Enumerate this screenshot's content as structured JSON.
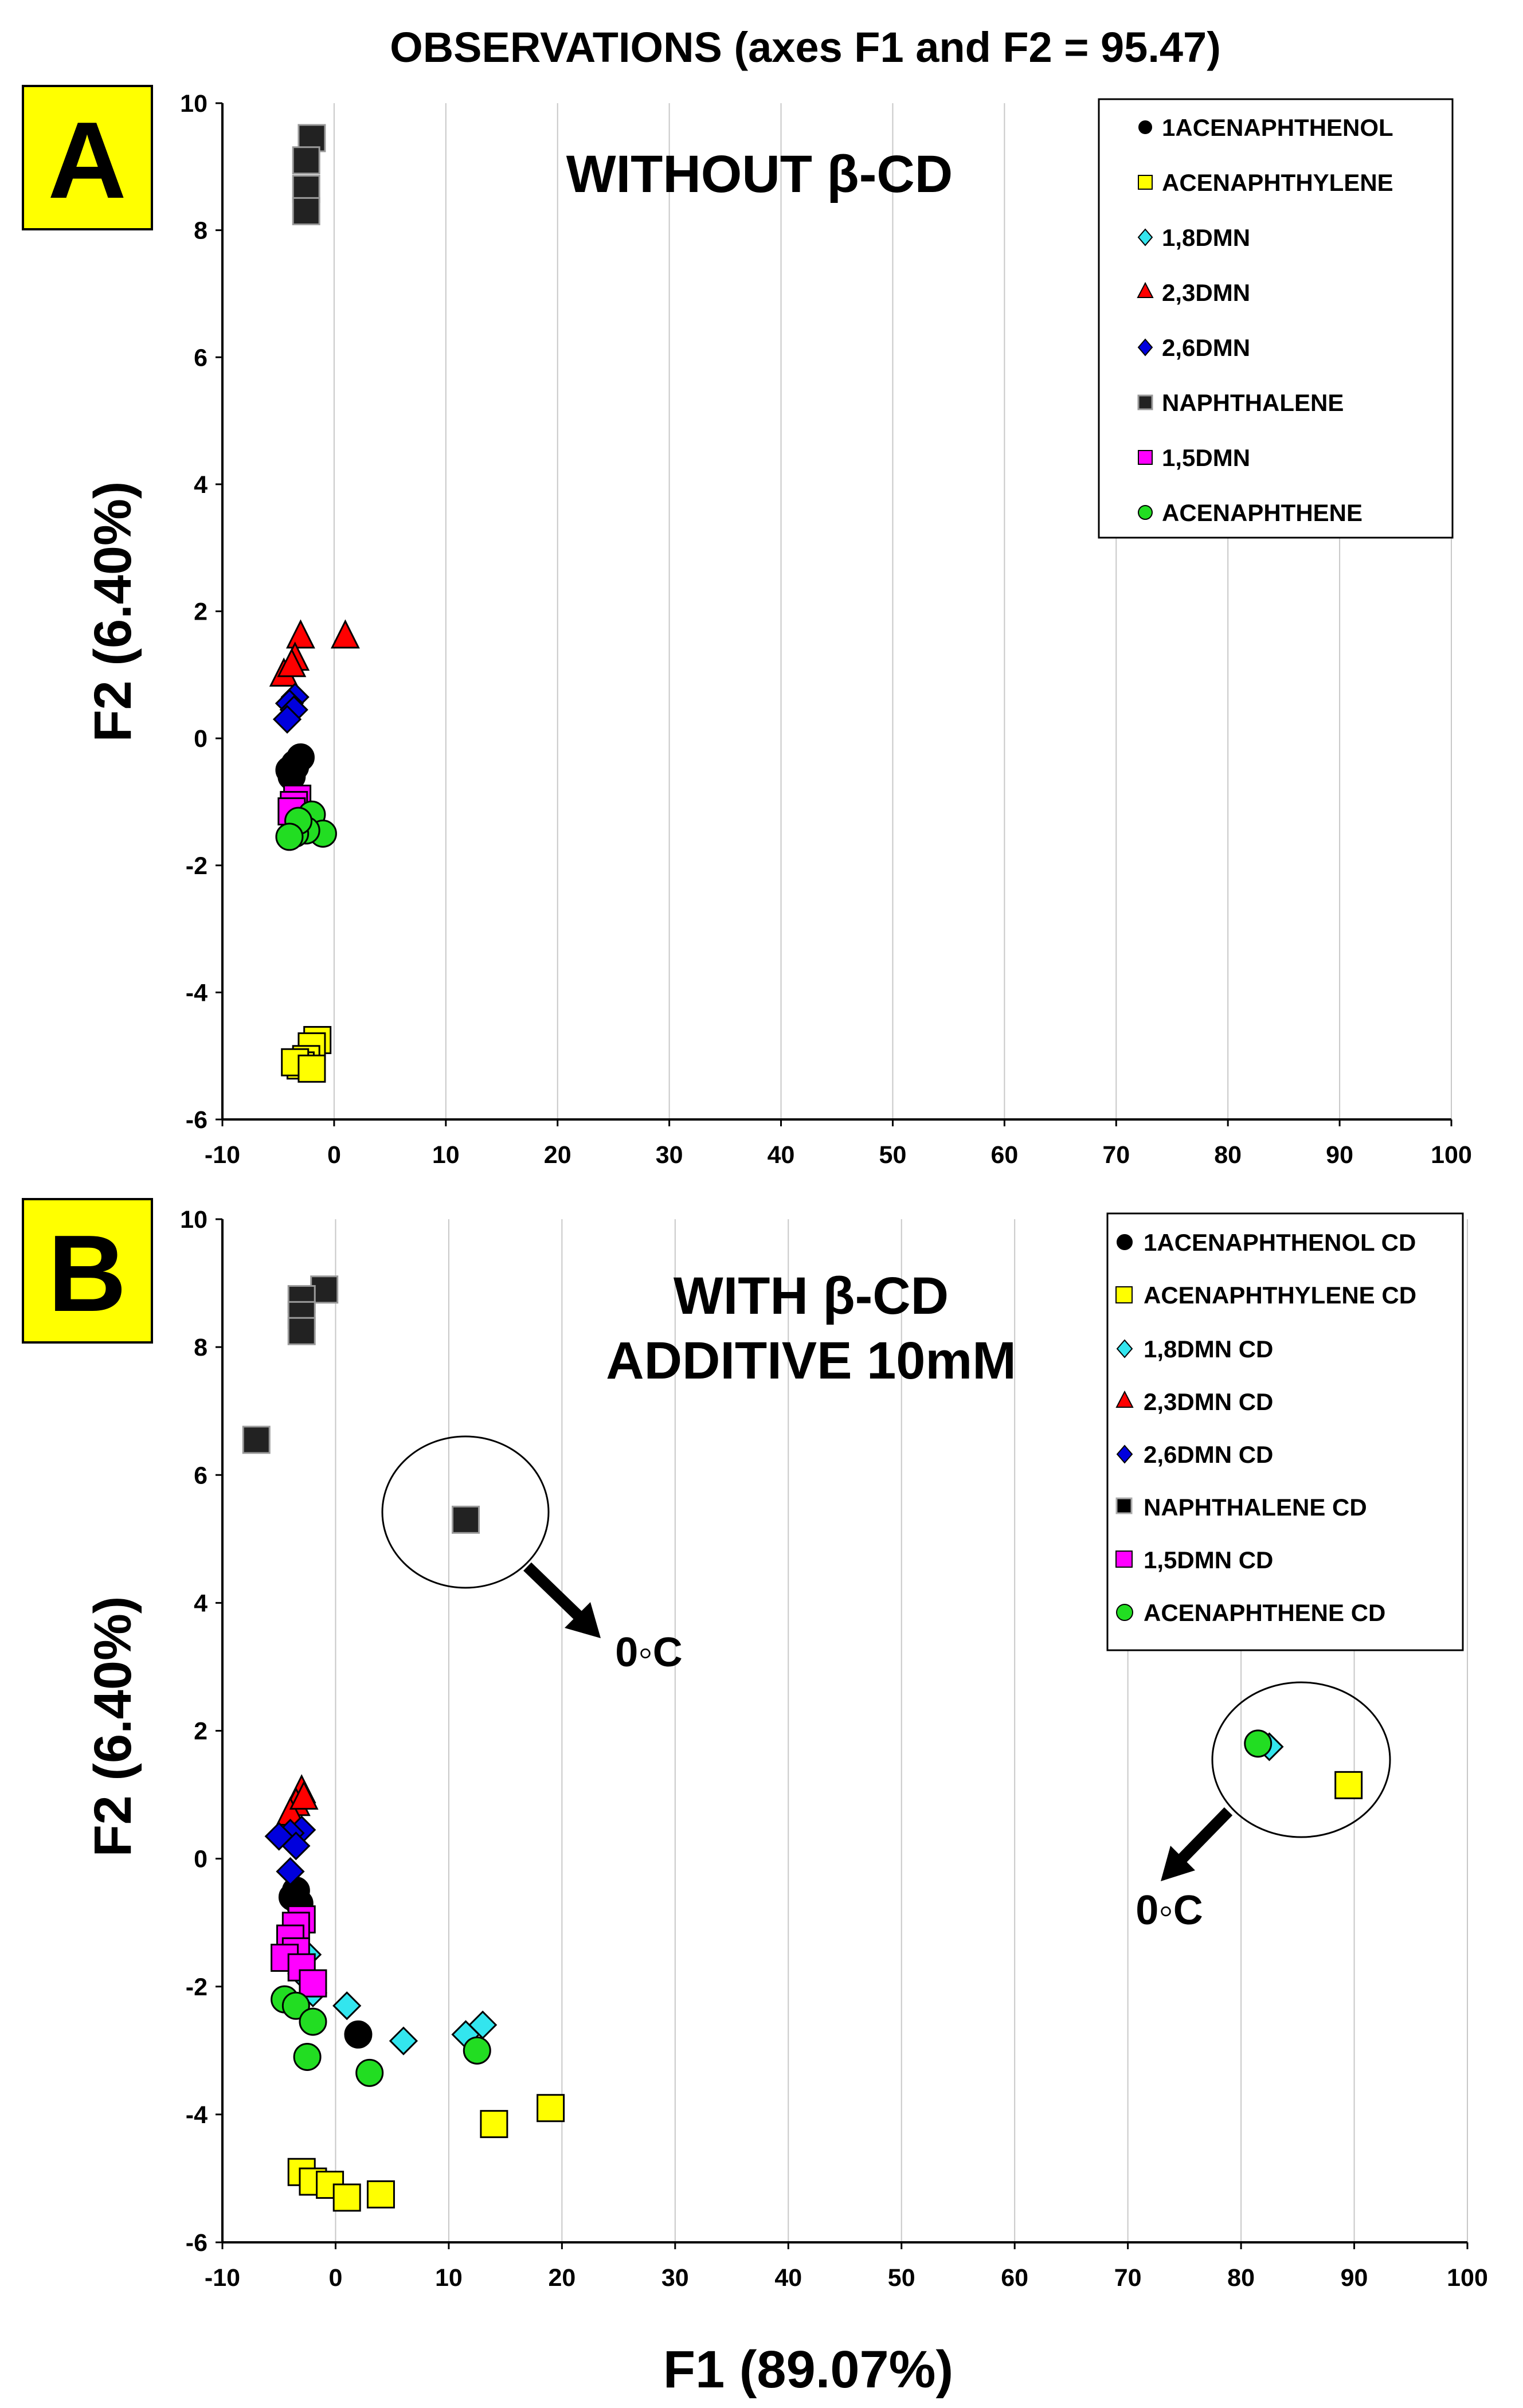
{
  "title": "OBSERVATIONS (axes F1 and F2 = 95.47)",
  "colors": {
    "1ACENAPHTHENOL": "#000000",
    "ACENAPHTHYLENE": "#ffff00",
    "1,8DMN": "#33e5ee",
    "2,3DMN": "#ff0000",
    "2,6DMN": "#0000dd",
    "NAPHTHALENE": "#222222",
    "1,5DMN": "#ff00ff",
    "ACENAPHTHENE": "#22dd22",
    "badge": "#ffff00"
  },
  "chart_data": [
    {
      "type": "scatter",
      "panel": "A",
      "condition": [
        "WITHOUT β-CD"
      ],
      "xlabel": "",
      "ylabel": "F2 (6.40%)",
      "xlim": [
        -10,
        100
      ],
      "ylim": [
        -6,
        10
      ],
      "xticks": [
        "-10",
        "0",
        "10",
        "20",
        "30",
        "40",
        "50",
        "60",
        "70",
        "80",
        "90",
        "100"
      ],
      "yticks": [
        "-6",
        "-4",
        "-2",
        "0",
        "2",
        "4",
        "6",
        "8",
        "10"
      ],
      "legend_position": "top-right",
      "series": [
        {
          "name": "1ACENAPHTHENOL",
          "key": "1ACENAPHTHENOL",
          "marker": "circle",
          "points": [
            [
              -3.0,
              -0.3
            ],
            [
              -3.5,
              -0.4
            ],
            [
              -4.0,
              -0.5
            ],
            [
              -3.8,
              -0.6
            ],
            [
              -3.5,
              -0.45
            ]
          ]
        },
        {
          "name": "ACENAPHTHYLENE",
          "key": "ACENAPHTHYLENE",
          "marker": "square",
          "points": [
            [
              -1.5,
              -4.75
            ],
            [
              -2.0,
              -4.85
            ],
            [
              -2.5,
              -5.05
            ],
            [
              -3.0,
              -5.15
            ],
            [
              -3.5,
              -5.1
            ],
            [
              -2.0,
              -5.2
            ]
          ]
        },
        {
          "name": "1,8DMN",
          "key": "1,8DMN",
          "marker": "diamond",
          "points": []
        },
        {
          "name": "2,3DMN",
          "key": "2,3DMN",
          "marker": "triangle",
          "points": [
            [
              -3.0,
              1.6
            ],
            [
              -3.5,
              1.25
            ],
            [
              -4.5,
              1.0
            ],
            [
              -3.8,
              1.15
            ],
            [
              1.0,
              1.6
            ]
          ]
        },
        {
          "name": "2,6DMN",
          "key": "2,6DMN",
          "marker": "diamond",
          "points": [
            [
              -3.5,
              0.65
            ],
            [
              -4.0,
              0.55
            ],
            [
              -3.6,
              0.45
            ],
            [
              -4.2,
              0.3
            ]
          ]
        },
        {
          "name": "NAPHTHALENE",
          "key": "NAPHTHALENE",
          "marker": "square",
          "points": [
            [
              -2.0,
              9.45
            ],
            [
              -2.5,
              9.1
            ],
            [
              -2.5,
              8.65
            ],
            [
              -2.5,
              8.3
            ]
          ]
        },
        {
          "name": "1,5DMN",
          "key": "1,5DMN",
          "marker": "square",
          "points": [
            [
              -3.3,
              -0.95
            ],
            [
              -3.6,
              -1.05
            ],
            [
              -3.8,
              -1.15
            ]
          ]
        },
        {
          "name": "ACENAPHTHENE",
          "key": "ACENAPHTHENE",
          "marker": "circle",
          "points": [
            [
              -2.0,
              -1.2
            ],
            [
              -1.0,
              -1.5
            ],
            [
              -2.5,
              -1.45
            ],
            [
              -3.5,
              -1.5
            ],
            [
              -3.2,
              -1.3
            ],
            [
              -4.0,
              -1.55
            ]
          ]
        }
      ]
    },
    {
      "type": "scatter",
      "panel": "B",
      "condition": [
        "WITH β-CD",
        "ADDITIVE 10mM"
      ],
      "xlabel": "F1 (89.07%)",
      "ylabel": "F2 (6.40%)",
      "xlim": [
        -10,
        100
      ],
      "ylim": [
        -6,
        10
      ],
      "xticks": [
        "-10",
        "0",
        "10",
        "20",
        "30",
        "40",
        "50",
        "60",
        "70",
        "80",
        "90",
        "100"
      ],
      "yticks": [
        "-6",
        "-4",
        "-2",
        "0",
        "2",
        "4",
        "6",
        "8",
        "10"
      ],
      "legend_position": "top-right",
      "annotations": [
        "0◦C",
        "0◦C"
      ],
      "series": [
        {
          "name": "1ACENAPHTHENOL CD",
          "key": "1ACENAPHTHENOL",
          "marker": "circle",
          "points": [
            [
              -3.5,
              -0.5
            ],
            [
              -3.8,
              -0.6
            ],
            [
              -3.2,
              -0.7
            ],
            [
              2.0,
              -2.75
            ]
          ]
        },
        {
          "name": "ACENAPHTHYLENE CD",
          "key": "ACENAPHTHYLENE",
          "marker": "square",
          "points": [
            [
              -3.0,
              -4.9
            ],
            [
              -2.0,
              -5.05
            ],
            [
              -0.5,
              -5.1
            ],
            [
              1.0,
              -5.3
            ],
            [
              4.0,
              -5.25
            ],
            [
              14.0,
              -4.15
            ],
            [
              19.0,
              -3.9
            ],
            [
              89.5,
              1.15
            ]
          ]
        },
        {
          "name": "1,8DMN CD",
          "key": "1,8DMN",
          "marker": "diamond",
          "points": [
            [
              1.0,
              -2.3
            ],
            [
              6.0,
              -2.85
            ],
            [
              11.5,
              -2.75
            ],
            [
              13.0,
              -2.6
            ],
            [
              -2.0,
              -2.1
            ],
            [
              -3.0,
              -1.8
            ],
            [
              -2.5,
              -1.5
            ],
            [
              82.5,
              1.75
            ]
          ]
        },
        {
          "name": "2,3DMN CD",
          "key": "2,3DMN",
          "marker": "triangle",
          "points": [
            [
              -3.0,
              1.05
            ],
            [
              -3.5,
              0.85
            ],
            [
              -4.0,
              0.7
            ],
            [
              -2.8,
              0.95
            ]
          ]
        },
        {
          "name": "2,6DMN CD",
          "key": "2,6DMN",
          "marker": "diamond",
          "points": [
            [
              -3.0,
              0.45
            ],
            [
              -4.0,
              0.4
            ],
            [
              -5.0,
              0.35
            ],
            [
              -3.5,
              0.2
            ],
            [
              -4.0,
              -0.2
            ]
          ]
        },
        {
          "name": "NAPHTHALENE CD",
          "key": "NAPHTHALENE",
          "marker": "square",
          "points": [
            [
              -1.0,
              8.9
            ],
            [
              -3.0,
              8.75
            ],
            [
              -3.0,
              8.5
            ],
            [
              -3.0,
              8.25
            ],
            [
              -7.0,
              6.55
            ],
            [
              11.5,
              5.3
            ]
          ]
        },
        {
          "name": "1,5DMN CD",
          "key": "1,5DMN",
          "marker": "square",
          "points": [
            [
              -3.0,
              -0.95
            ],
            [
              -3.5,
              -1.05
            ],
            [
              -4.0,
              -1.25
            ],
            [
              -3.5,
              -1.45
            ],
            [
              -4.5,
              -1.55
            ],
            [
              -3.0,
              -1.7
            ],
            [
              -2.0,
              -1.95
            ]
          ]
        },
        {
          "name": "ACENAPHTHENE CD",
          "key": "ACENAPHTHENE",
          "marker": "circle",
          "points": [
            [
              -4.5,
              -2.2
            ],
            [
              -3.5,
              -2.3
            ],
            [
              -2.0,
              -2.55
            ],
            [
              -2.5,
              -3.1
            ],
            [
              3.0,
              -3.35
            ],
            [
              12.5,
              -3.0
            ],
            [
              81.5,
              1.8
            ]
          ]
        }
      ]
    }
  ]
}
